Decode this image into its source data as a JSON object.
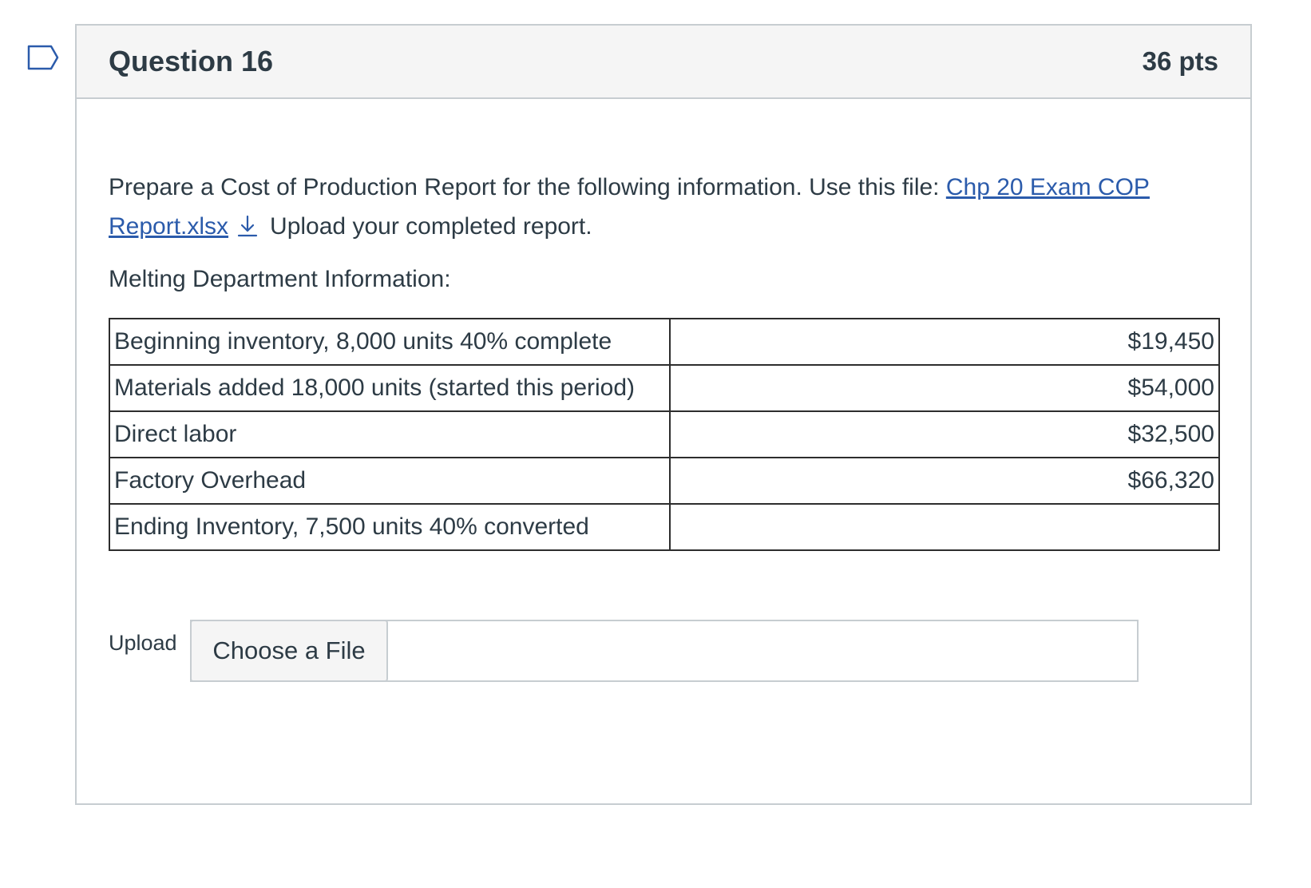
{
  "question": {
    "title": "Question 16",
    "points": "36 pts",
    "flag_icon": "bookmark-flag-icon"
  },
  "prompt": {
    "text_before_link": "Prepare a Cost of Production Report for the following information.  Use this file: ",
    "file_link_text": "Chp 20 Exam COP Report.xlsx",
    "download_icon": "download-arrow-icon",
    "text_after_link": "Upload your completed report."
  },
  "section_heading": "Melting Department Information:",
  "table": {
    "rows": [
      {
        "label": "Beginning inventory, 8,000 units 40% complete",
        "value": "$19,450"
      },
      {
        "label": "Materials added 18,000 units (started this period)",
        "value": "$54,000"
      },
      {
        "label": "Direct labor",
        "value": "$32,500"
      },
      {
        "label": "Factory Overhead",
        "value": "$66,320"
      },
      {
        "label": "Ending Inventory, 7,500 units 40% converted",
        "value": ""
      }
    ]
  },
  "upload": {
    "label": "Upload",
    "button_label": "Choose a File",
    "file_name": ""
  },
  "colors": {
    "link": "#2b5bab",
    "text": "#2d3b45",
    "header_bg": "#f5f5f5",
    "border": "#c7cdd1"
  }
}
